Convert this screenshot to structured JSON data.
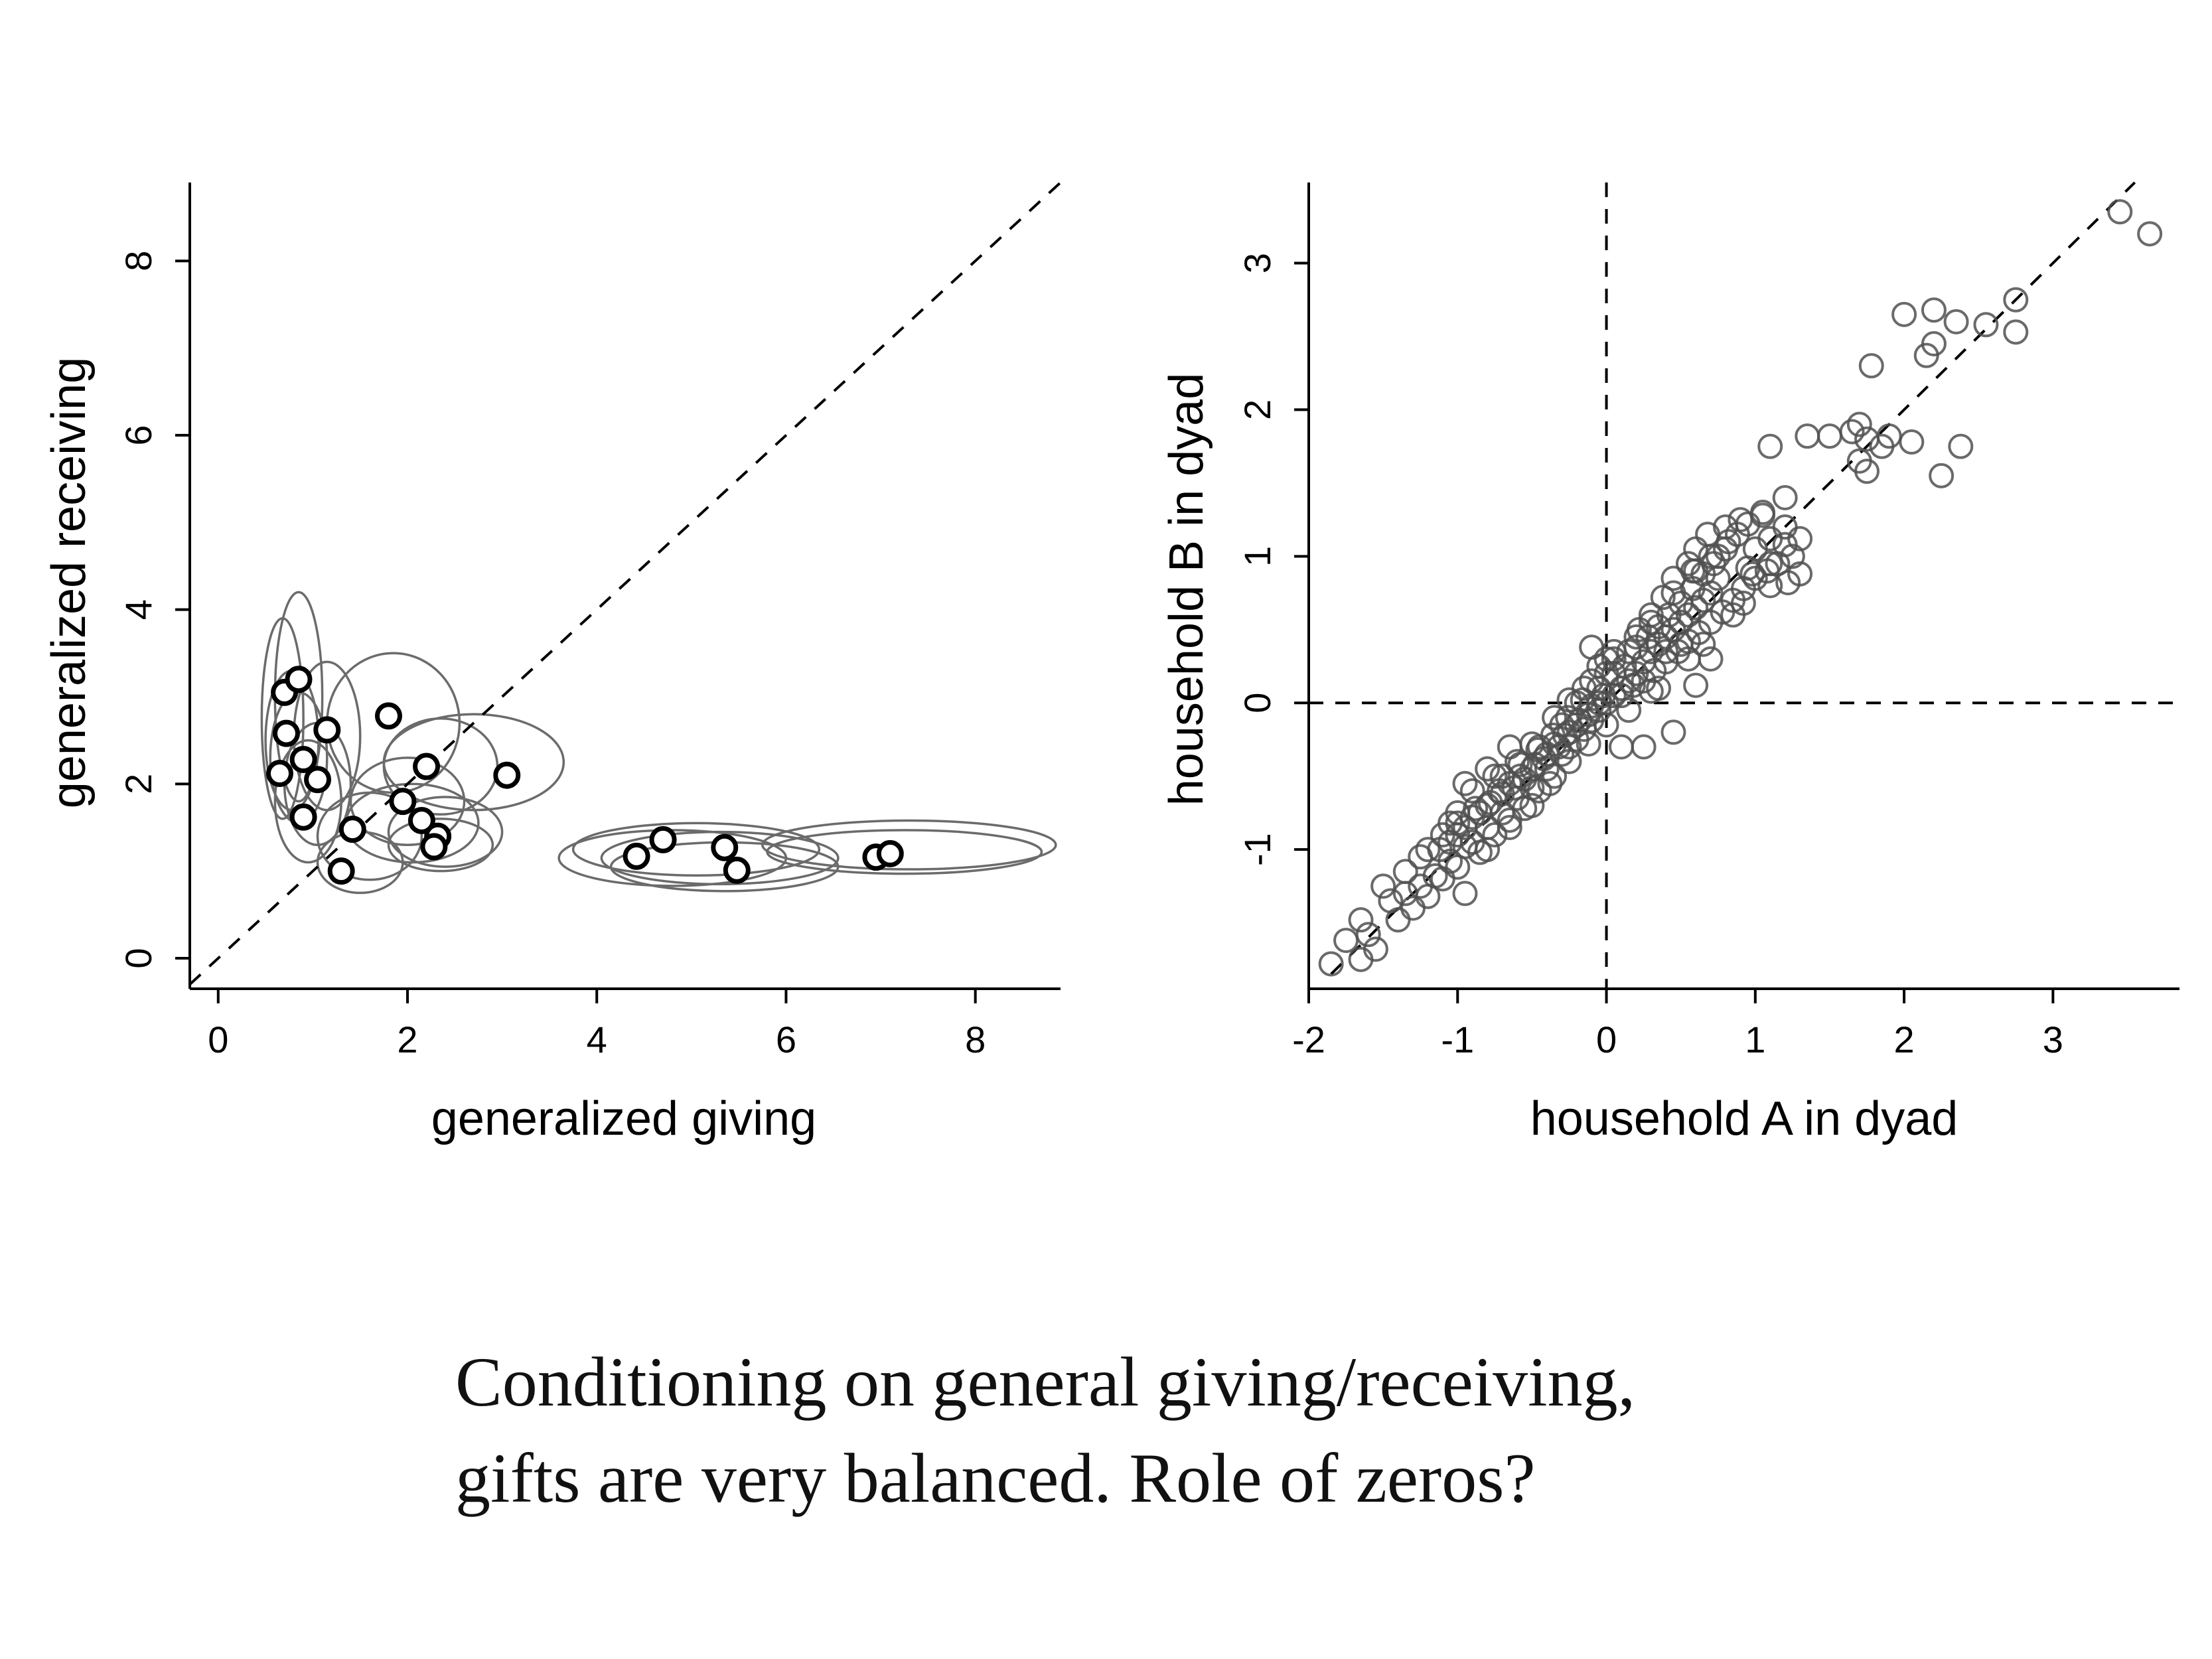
{
  "chart_data": [
    {
      "type": "scatter",
      "xlabel": "generalized giving",
      "ylabel": "generalized receiving",
      "xlim": [
        -0.3,
        8.9
      ],
      "ylim": [
        -0.35,
        8.9
      ],
      "xticks": [
        "0",
        "2",
        "4",
        "6",
        "8"
      ],
      "yticks": [
        "0",
        "2",
        "4",
        "6",
        "8"
      ],
      "reference_lines": [
        "y = x (dashed)"
      ],
      "points": [
        {
          "x": 0.7,
          "y": 3.05
        },
        {
          "x": 0.85,
          "y": 3.2
        },
        {
          "x": 0.72,
          "y": 2.58
        },
        {
          "x": 1.15,
          "y": 2.62
        },
        {
          "x": 0.65,
          "y": 2.12
        },
        {
          "x": 0.9,
          "y": 2.28
        },
        {
          "x": 1.05,
          "y": 2.05
        },
        {
          "x": 0.9,
          "y": 1.62
        },
        {
          "x": 1.8,
          "y": 2.78
        },
        {
          "x": 2.2,
          "y": 2.2
        },
        {
          "x": 1.95,
          "y": 1.8
        },
        {
          "x": 2.15,
          "y": 1.58
        },
        {
          "x": 2.32,
          "y": 1.4
        },
        {
          "x": 2.28,
          "y": 1.28
        },
        {
          "x": 1.42,
          "y": 1.48
        },
        {
          "x": 1.3,
          "y": 1.0
        },
        {
          "x": 3.05,
          "y": 2.1
        },
        {
          "x": 4.42,
          "y": 1.17
        },
        {
          "x": 4.7,
          "y": 1.36
        },
        {
          "x": 5.35,
          "y": 1.27
        },
        {
          "x": 5.48,
          "y": 1.01
        },
        {
          "x": 6.95,
          "y": 1.16
        },
        {
          "x": 7.1,
          "y": 1.2
        }
      ],
      "ellipses": [
        {
          "cx": 0.68,
          "cy": 2.75,
          "rx": 0.22,
          "ry": 1.15
        },
        {
          "cx": 0.85,
          "cy": 3.0,
          "rx": 0.25,
          "ry": 1.2
        },
        {
          "cx": 0.78,
          "cy": 2.5,
          "rx": 0.28,
          "ry": 0.8
        },
        {
          "cx": 1.15,
          "cy": 2.55,
          "rx": 0.35,
          "ry": 0.85
        },
        {
          "cx": 0.85,
          "cy": 2.3,
          "rx": 0.3,
          "ry": 0.75
        },
        {
          "cx": 1.05,
          "cy": 2.0,
          "rx": 0.35,
          "ry": 0.7
        },
        {
          "cx": 0.95,
          "cy": 1.8,
          "rx": 0.35,
          "ry": 0.7
        },
        {
          "cx": 1.85,
          "cy": 2.7,
          "rx": 0.7,
          "ry": 0.8
        },
        {
          "cx": 2.35,
          "cy": 2.2,
          "rx": 0.6,
          "ry": 0.55
        },
        {
          "cx": 2.0,
          "cy": 1.8,
          "rx": 0.6,
          "ry": 0.5
        },
        {
          "cx": 2.05,
          "cy": 1.55,
          "rx": 0.7,
          "ry": 0.45
        },
        {
          "cx": 2.4,
          "cy": 1.45,
          "rx": 0.6,
          "ry": 0.4
        },
        {
          "cx": 2.35,
          "cy": 1.3,
          "rx": 0.55,
          "ry": 0.3
        },
        {
          "cx": 1.6,
          "cy": 1.4,
          "rx": 0.55,
          "ry": 0.5
        },
        {
          "cx": 1.5,
          "cy": 1.1,
          "rx": 0.45,
          "ry": 0.35
        },
        {
          "cx": 2.7,
          "cy": 2.25,
          "rx": 0.95,
          "ry": 0.55
        },
        {
          "cx": 4.8,
          "cy": 1.15,
          "rx": 1.2,
          "ry": 0.32
        },
        {
          "cx": 5.05,
          "cy": 1.25,
          "rx": 1.3,
          "ry": 0.3
        },
        {
          "cx": 5.3,
          "cy": 1.15,
          "rx": 1.25,
          "ry": 0.3
        },
        {
          "cx": 5.35,
          "cy": 1.05,
          "rx": 1.2,
          "ry": 0.28
        },
        {
          "cx": 7.3,
          "cy": 1.3,
          "rx": 1.55,
          "ry": 0.28
        },
        {
          "cx": 7.25,
          "cy": 1.22,
          "rx": 1.45,
          "ry": 0.25
        }
      ]
    },
    {
      "type": "scatter",
      "xlabel": "household A in dyad",
      "ylabel": "household B in dyad",
      "xlim": [
        -2.0,
        3.85
      ],
      "ylim": [
        -1.95,
        3.55
      ],
      "xticks": [
        "-2",
        "-1",
        "0",
        "1",
        "2",
        "3"
      ],
      "yticks": [
        "-1",
        "0",
        "1",
        "2",
        "3"
      ],
      "reference_lines": [
        "y = x (dashed)",
        "x = 0 (dashed)",
        "y = 0 (dashed)"
      ],
      "points": [
        [
          -1.85,
          -1.78
        ],
        [
          -1.75,
          -1.62
        ],
        [
          -1.65,
          -1.75
        ],
        [
          -1.6,
          -1.58
        ],
        [
          -1.65,
          -1.48
        ],
        [
          -1.55,
          -1.68
        ],
        [
          -1.45,
          -1.35
        ],
        [
          -1.4,
          -1.48
        ],
        [
          -1.35,
          -1.3
        ],
        [
          -1.3,
          -1.4
        ],
        [
          -1.25,
          -1.25
        ],
        [
          -1.2,
          -1.32
        ],
        [
          -1.15,
          -1.18
        ],
        [
          -1.1,
          -1.2
        ],
        [
          -1.05,
          -1.08
        ],
        [
          -1.0,
          -1.12
        ],
        [
          -0.95,
          -1.3
        ],
        [
          -0.95,
          -0.98
        ],
        [
          -0.9,
          -0.95
        ],
        [
          -0.85,
          -1.02
        ],
        [
          -0.8,
          -0.85
        ],
        [
          -0.75,
          -0.9
        ],
        [
          -0.7,
          -0.75
        ],
        [
          -0.65,
          -0.8
        ],
        [
          -0.6,
          -0.65
        ],
        [
          -0.55,
          -0.72
        ],
        [
          -0.5,
          -0.58
        ],
        [
          -0.45,
          -0.6
        ],
        [
          -0.4,
          -0.45
        ],
        [
          -0.35,
          -0.5
        ],
        [
          -0.3,
          -0.35
        ],
        [
          -0.25,
          -0.3
        ],
        [
          -0.2,
          -0.25
        ],
        [
          -0.15,
          -0.18
        ],
        [
          -0.1,
          -0.12
        ],
        [
          -0.05,
          -0.05
        ],
        [
          -1.1,
          -0.9
        ],
        [
          -1.0,
          -0.82
        ],
        [
          -0.9,
          -0.78
        ],
        [
          -0.8,
          -0.7
        ],
        [
          -0.72,
          -0.6
        ],
        [
          -0.65,
          -0.55
        ],
        [
          -0.58,
          -0.5
        ],
        [
          -0.5,
          -0.45
        ],
        [
          -0.42,
          -0.38
        ],
        [
          -0.35,
          -0.28
        ],
        [
          -0.28,
          -0.22
        ],
        [
          -0.2,
          -0.15
        ],
        [
          -0.12,
          -0.08
        ],
        [
          -0.05,
          0.0
        ],
        [
          -1.2,
          -1.0
        ],
        [
          -1.05,
          -0.95
        ],
        [
          -0.95,
          -0.85
        ],
        [
          -0.85,
          -0.75
        ],
        [
          -0.78,
          -0.68
        ],
        [
          -0.7,
          -0.62
        ],
        [
          -0.62,
          -0.58
        ],
        [
          -0.55,
          -0.52
        ],
        [
          -0.48,
          -0.42
        ],
        [
          -0.4,
          -0.35
        ],
        [
          -0.32,
          -0.3
        ],
        [
          -0.25,
          -0.2
        ],
        [
          -0.18,
          -0.12
        ],
        [
          -0.1,
          -0.02
        ],
        [
          -0.02,
          0.05
        ],
        [
          -0.9,
          -0.6
        ],
        [
          -0.75,
          -0.5
        ],
        [
          -0.6,
          -0.4
        ],
        [
          -0.45,
          -0.3
        ],
        [
          -0.3,
          -0.15
        ],
        [
          -0.2,
          0.0
        ],
        [
          -0.1,
          0.15
        ],
        [
          0.0,
          0.2
        ],
        [
          -0.35,
          -0.1
        ],
        [
          -0.25,
          0.02
        ],
        [
          -0.15,
          0.1
        ],
        [
          -0.05,
          0.25
        ],
        [
          0.05,
          0.3
        ],
        [
          -0.8,
          -1.0
        ],
        [
          -0.65,
          -0.85
        ],
        [
          -0.5,
          -0.7
        ],
        [
          -0.38,
          -0.55
        ],
        [
          -0.25,
          -0.4
        ],
        [
          -0.12,
          -0.28
        ],
        [
          0.0,
          -0.15
        ],
        [
          0.1,
          -0.3
        ],
        [
          0.25,
          -0.3
        ],
        [
          0.0,
          0.0
        ],
        [
          0.05,
          0.05
        ],
        [
          0.1,
          0.1
        ],
        [
          0.15,
          0.15
        ],
        [
          0.2,
          0.2
        ],
        [
          0.25,
          0.28
        ],
        [
          0.3,
          0.35
        ],
        [
          0.35,
          0.4
        ],
        [
          0.4,
          0.45
        ],
        [
          0.45,
          0.5
        ],
        [
          0.5,
          0.55
        ],
        [
          0.55,
          0.6
        ],
        [
          0.6,
          0.65
        ],
        [
          0.65,
          0.7
        ],
        [
          0.7,
          0.75
        ],
        [
          0.05,
          0.2
        ],
        [
          0.12,
          0.25
        ],
        [
          0.2,
          0.38
        ],
        [
          0.28,
          0.45
        ],
        [
          0.35,
          0.52
        ],
        [
          0.42,
          0.6
        ],
        [
          0.5,
          0.68
        ],
        [
          0.58,
          0.78
        ],
        [
          0.65,
          0.88
        ],
        [
          0.72,
          0.95
        ],
        [
          0.8,
          1.05
        ],
        [
          0.88,
          1.15
        ],
        [
          0.95,
          1.22
        ],
        [
          1.05,
          1.28
        ],
        [
          0.1,
          0.05
        ],
        [
          0.18,
          0.12
        ],
        [
          0.25,
          0.15
        ],
        [
          0.32,
          0.22
        ],
        [
          0.4,
          0.28
        ],
        [
          0.48,
          0.35
        ],
        [
          0.55,
          0.42
        ],
        [
          0.62,
          0.48
        ],
        [
          0.7,
          0.55
        ],
        [
          0.78,
          0.62
        ],
        [
          0.85,
          0.7
        ],
        [
          0.92,
          0.78
        ],
        [
          1.0,
          0.85
        ],
        [
          1.08,
          0.9
        ],
        [
          1.15,
          0.95
        ],
        [
          1.22,
          0.82
        ],
        [
          1.3,
          0.88
        ],
        [
          1.1,
          0.8
        ],
        [
          0.15,
          0.35
        ],
        [
          0.22,
          0.5
        ],
        [
          0.3,
          0.6
        ],
        [
          0.38,
          0.72
        ],
        [
          0.45,
          0.85
        ],
        [
          0.55,
          0.95
        ],
        [
          0.6,
          1.05
        ],
        [
          0.68,
          1.15
        ],
        [
          0.75,
          1.0
        ],
        [
          0.82,
          1.1
        ],
        [
          1.0,
          1.05
        ],
        [
          1.1,
          1.12
        ],
        [
          1.2,
          1.08
        ],
        [
          1.25,
          1.0
        ],
        [
          0.95,
          0.92
        ],
        [
          0.75,
          0.85
        ],
        [
          0.6,
          0.9
        ],
        [
          0.5,
          0.4
        ],
        [
          0.4,
          0.35
        ],
        [
          0.3,
          0.55
        ],
        [
          0.2,
          0.45
        ],
        [
          0.45,
          -0.2
        ],
        [
          0.65,
          0.4
        ],
        [
          0.7,
          0.3
        ],
        [
          0.55,
          0.3
        ],
        [
          0.35,
          0.1
        ],
        [
          0.6,
          0.12
        ],
        [
          1.1,
          1.75
        ],
        [
          1.1,
          0.95
        ],
        [
          1.2,
          1.2
        ],
        [
          1.3,
          1.12
        ],
        [
          0.85,
          0.6
        ],
        [
          0.92,
          0.68
        ],
        [
          0.98,
          0.88
        ],
        [
          0.05,
          0.35
        ],
        [
          0.0,
          0.3
        ],
        [
          -0.1,
          0.38
        ],
        [
          -0.05,
          0.1
        ],
        [
          0.15,
          -0.05
        ],
        [
          0.3,
          0.08
        ],
        [
          -0.5,
          -0.28
        ],
        [
          -0.65,
          -0.3
        ],
        [
          -0.8,
          -0.45
        ],
        [
          -0.95,
          -0.55
        ],
        [
          -1.0,
          -0.75
        ],
        [
          -1.05,
          -0.82
        ],
        [
          1.35,
          1.82
        ],
        [
          1.5,
          1.82
        ],
        [
          1.65,
          1.85
        ],
        [
          1.75,
          1.8
        ],
        [
          1.7,
          1.9
        ],
        [
          1.85,
          1.75
        ],
        [
          1.75,
          1.58
        ],
        [
          1.9,
          1.82
        ],
        [
          1.78,
          2.3
        ],
        [
          2.0,
          2.65
        ],
        [
          2.15,
          2.37
        ],
        [
          2.2,
          2.45
        ],
        [
          2.2,
          2.68
        ],
        [
          2.35,
          2.6
        ],
        [
          2.55,
          2.58
        ],
        [
          2.75,
          2.75
        ],
        [
          2.75,
          2.53
        ],
        [
          2.05,
          1.78
        ],
        [
          2.25,
          1.55
        ],
        [
          2.38,
          1.75
        ],
        [
          1.7,
          1.65
        ],
        [
          3.45,
          3.35
        ],
        [
          3.65,
          3.2
        ],
        [
          1.2,
          1.4
        ],
        [
          1.05,
          1.3
        ],
        [
          0.9,
          1.25
        ],
        [
          0.8,
          1.2
        ],
        [
          0.7,
          1.0
        ],
        [
          0.58,
          0.9
        ],
        [
          0.45,
          0.75
        ],
        [
          -1.5,
          -1.25
        ],
        [
          -1.35,
          -1.15
        ],
        [
          -1.25,
          -1.05
        ],
        [
          -1.12,
          -1.0
        ],
        [
          -1.0,
          -0.9
        ],
        [
          -0.88,
          -0.72
        ],
        [
          -0.7,
          -0.5
        ],
        [
          -0.58,
          -0.42
        ],
        [
          -0.46,
          -0.32
        ],
        [
          -0.36,
          -0.22
        ],
        [
          -0.26,
          -0.1
        ],
        [
          -0.16,
          0.02
        ]
      ]
    }
  ],
  "caption": {
    "line1": "Conditioning on general giving/receiving,",
    "line2": "gifts are very balanced. Role of zeros?"
  }
}
